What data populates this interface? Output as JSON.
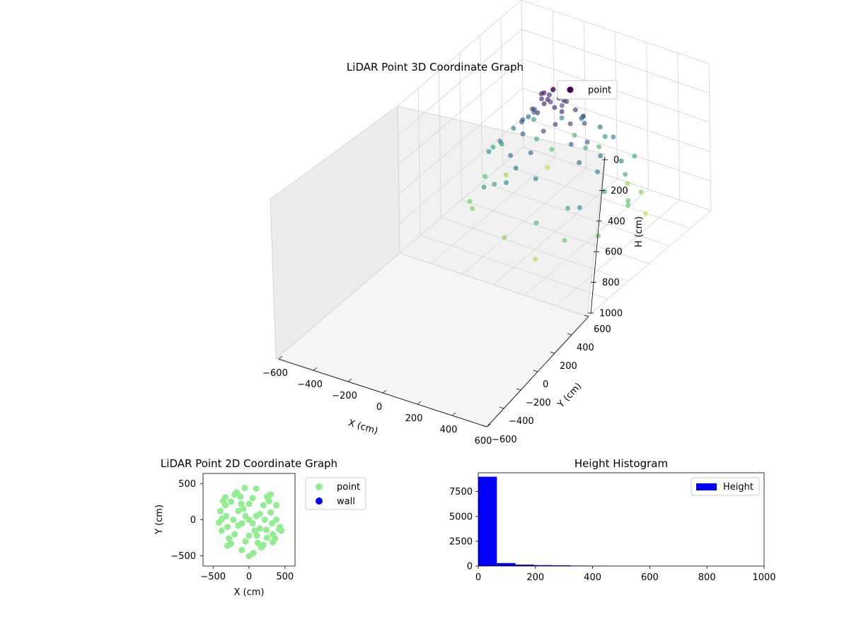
{
  "chart_data": [
    {
      "type": "scatter",
      "title": "LiDAR Point 3D Coordinate Graph",
      "xlabel": "X (cm)",
      "ylabel": "Y (cm)",
      "zlabel": "H (cm)",
      "xlim": [
        -600,
        600
      ],
      "ylim": [
        -600,
        600
      ],
      "zlim": [
        0,
        1000
      ],
      "z_inverted": true,
      "x_ticks": [
        -600,
        -400,
        -200,
        0,
        200,
        400,
        600
      ],
      "y_ticks": [
        -600,
        -400,
        -200,
        0,
        200,
        400,
        600
      ],
      "z_ticks": [
        0,
        200,
        400,
        600,
        800,
        1000
      ],
      "colormap": "viridis",
      "color_by": "H",
      "legend": {
        "placement": "top-right",
        "entries": [
          "point"
        ]
      },
      "grid": true,
      "series": [
        {
          "name": "point",
          "color": "#440154",
          "points": [
            [
              0,
              0,
              30
            ],
            [
              50,
              20,
              60
            ],
            [
              -40,
              30,
              50
            ],
            [
              20,
              -50,
              40
            ],
            [
              -30,
              -40,
              70
            ],
            [
              60,
              -10,
              90
            ],
            [
              -70,
              10,
              80
            ],
            [
              10,
              70,
              55
            ],
            [
              -20,
              60,
              100
            ],
            [
              40,
              50,
              110
            ],
            [
              -60,
              -50,
              120
            ],
            [
              80,
              40,
              130
            ],
            [
              -90,
              -20,
              140
            ],
            [
              30,
              -80,
              150
            ],
            [
              -50,
              80,
              160
            ],
            [
              100,
              -60,
              170
            ],
            [
              -110,
              40,
              180
            ],
            [
              70,
              90,
              190
            ],
            [
              -80,
              -90,
              200
            ],
            [
              120,
              20,
              210
            ],
            [
              -130,
              -10,
              220
            ],
            [
              20,
              130,
              230
            ],
            [
              -40,
              -140,
              240
            ],
            [
              150,
              -70,
              250
            ],
            [
              -160,
              60,
              260
            ],
            [
              90,
              -150,
              270
            ],
            [
              -100,
              150,
              280
            ],
            [
              170,
              90,
              290
            ],
            [
              -180,
              -80,
              300
            ],
            [
              60,
              -190,
              310
            ],
            [
              -200,
              10,
              320
            ],
            [
              200,
              -20,
              330
            ],
            [
              -10,
              210,
              340
            ],
            [
              30,
              -220,
              350
            ],
            [
              -230,
              -100,
              360
            ],
            [
              240,
              120,
              370
            ],
            [
              -120,
              240,
              380
            ],
            [
              130,
              -250,
              390
            ],
            [
              -260,
              130,
              400
            ],
            [
              270,
              -40,
              410
            ],
            [
              -60,
              280,
              420
            ],
            [
              80,
              300,
              430
            ],
            [
              -300,
              -60,
              440
            ],
            [
              310,
              50,
              450
            ],
            [
              -150,
              -300,
              460
            ],
            [
              180,
              -300,
              470
            ],
            [
              -320,
              150,
              480
            ],
            [
              330,
              -150,
              490
            ],
            [
              -90,
              330,
              500
            ],
            [
              100,
              -340,
              520
            ],
            [
              -350,
              -20,
              540
            ],
            [
              360,
              60,
              560
            ],
            [
              -200,
              280,
              580
            ],
            [
              250,
              250,
              600
            ],
            [
              -280,
              -250,
              620
            ],
            [
              300,
              -230,
              640
            ],
            [
              -40,
              -360,
              660
            ],
            [
              120,
              360,
              680
            ],
            [
              -380,
              100,
              700
            ],
            [
              390,
              -120,
              720
            ],
            [
              -250,
              -350,
              740
            ],
            [
              280,
              330,
              760
            ],
            [
              -330,
              300,
              780
            ],
            [
              340,
              -320,
              800
            ],
            [
              -60,
              400,
              820
            ],
            [
              200,
              -400,
              840
            ],
            [
              -420,
              -160,
              860
            ],
            [
              150,
              420,
              880
            ],
            [
              -300,
              -380,
              900
            ],
            [
              380,
              -300,
              920
            ],
            [
              -380,
              250,
              780
            ],
            [
              410,
              200,
              760
            ],
            [
              -150,
              -420,
              650
            ],
            [
              -420,
              -40,
              600
            ],
            [
              430,
              -60,
              700
            ],
            [
              -200,
              380,
              540
            ],
            [
              260,
              -380,
              620
            ],
            [
              380,
              330,
              500
            ],
            [
              -350,
              -330,
              560
            ],
            [
              0,
              -430,
              680
            ]
          ]
        }
      ]
    },
    {
      "type": "scatter",
      "title": "LiDAR Point 2D Coordinate Graph",
      "xlabel": "X (cm)",
      "ylabel": "Y (cm)",
      "xlim": [
        -640,
        640
      ],
      "ylim": [
        -640,
        640
      ],
      "x_ticks": [
        -500,
        0,
        500
      ],
      "y_ticks": [
        -500,
        0,
        500
      ],
      "legend": {
        "placement": "outside-right",
        "entries": [
          "point",
          "wall"
        ]
      },
      "grid": false,
      "series": [
        {
          "name": "point",
          "color": "#90ee90",
          "points": [
            [
              0,
              0
            ],
            [
              100,
              50
            ],
            [
              -100,
              -50
            ],
            [
              150,
              -120
            ],
            [
              -150,
              120
            ],
            [
              200,
              200
            ],
            [
              -200,
              -200
            ],
            [
              250,
              -250
            ],
            [
              -250,
              250
            ],
            [
              300,
              100
            ],
            [
              -300,
              -100
            ],
            [
              50,
              300
            ],
            [
              -50,
              -300
            ],
            [
              320,
              -50
            ],
            [
              -320,
              50
            ],
            [
              120,
              -320
            ],
            [
              -120,
              320
            ],
            [
              280,
              260
            ],
            [
              -280,
              -260
            ],
            [
              330,
              -200
            ],
            [
              -330,
              200
            ],
            [
              200,
              -350
            ],
            [
              -200,
              350
            ],
            [
              -400,
              120
            ],
            [
              420,
              -130
            ],
            [
              450,
              -150
            ],
            [
              430,
              -100
            ],
            [
              -420,
              -40
            ],
            [
              -380,
              -150
            ],
            [
              380,
              200
            ],
            [
              -360,
              260
            ],
            [
              360,
              -260
            ],
            [
              -100,
              -420
            ],
            [
              100,
              430
            ],
            [
              0,
              -500
            ],
            [
              60,
              -460
            ],
            [
              -60,
              440
            ],
            [
              250,
              320
            ],
            [
              -250,
              -330
            ],
            [
              170,
              -380
            ],
            [
              -170,
              380
            ],
            [
              -300,
              -360
            ],
            [
              300,
              350
            ],
            [
              -80,
              150
            ],
            [
              80,
              -150
            ],
            [
              150,
              80
            ],
            [
              -150,
              -80
            ],
            [
              220,
              0
            ],
            [
              -220,
              0
            ],
            [
              0,
              220
            ],
            [
              0,
              -220
            ],
            [
              330,
              -310
            ],
            [
              -330,
              310
            ],
            [
              -50,
              50
            ],
            [
              50,
              -50
            ],
            [
              380,
              0
            ],
            [
              -380,
              10
            ],
            [
              110,
              -220
            ],
            [
              -110,
              220
            ],
            [
              240,
              -140
            ]
          ]
        },
        {
          "name": "wall",
          "color": "#0000ff",
          "points": []
        }
      ]
    },
    {
      "type": "bar",
      "title": "Height Histogram",
      "legend": {
        "placement": "top-right",
        "entries": [
          "Height"
        ]
      },
      "xlim": [
        0,
        1000
      ],
      "ylim": [
        0,
        9400
      ],
      "x_ticks": [
        0,
        200,
        400,
        600,
        800,
        1000
      ],
      "y_ticks": [
        0,
        2500,
        5000,
        7500
      ],
      "series": [
        {
          "name": "Height",
          "color": "#0000ff",
          "bins": [
            0,
            65,
            130,
            195,
            260,
            325,
            390,
            455,
            520,
            585,
            650,
            715,
            780,
            845,
            910,
            975
          ],
          "counts": [
            9000,
            300,
            140,
            90,
            70,
            40,
            25,
            15,
            10,
            8,
            6,
            4,
            3,
            2,
            1
          ]
        }
      ]
    }
  ]
}
